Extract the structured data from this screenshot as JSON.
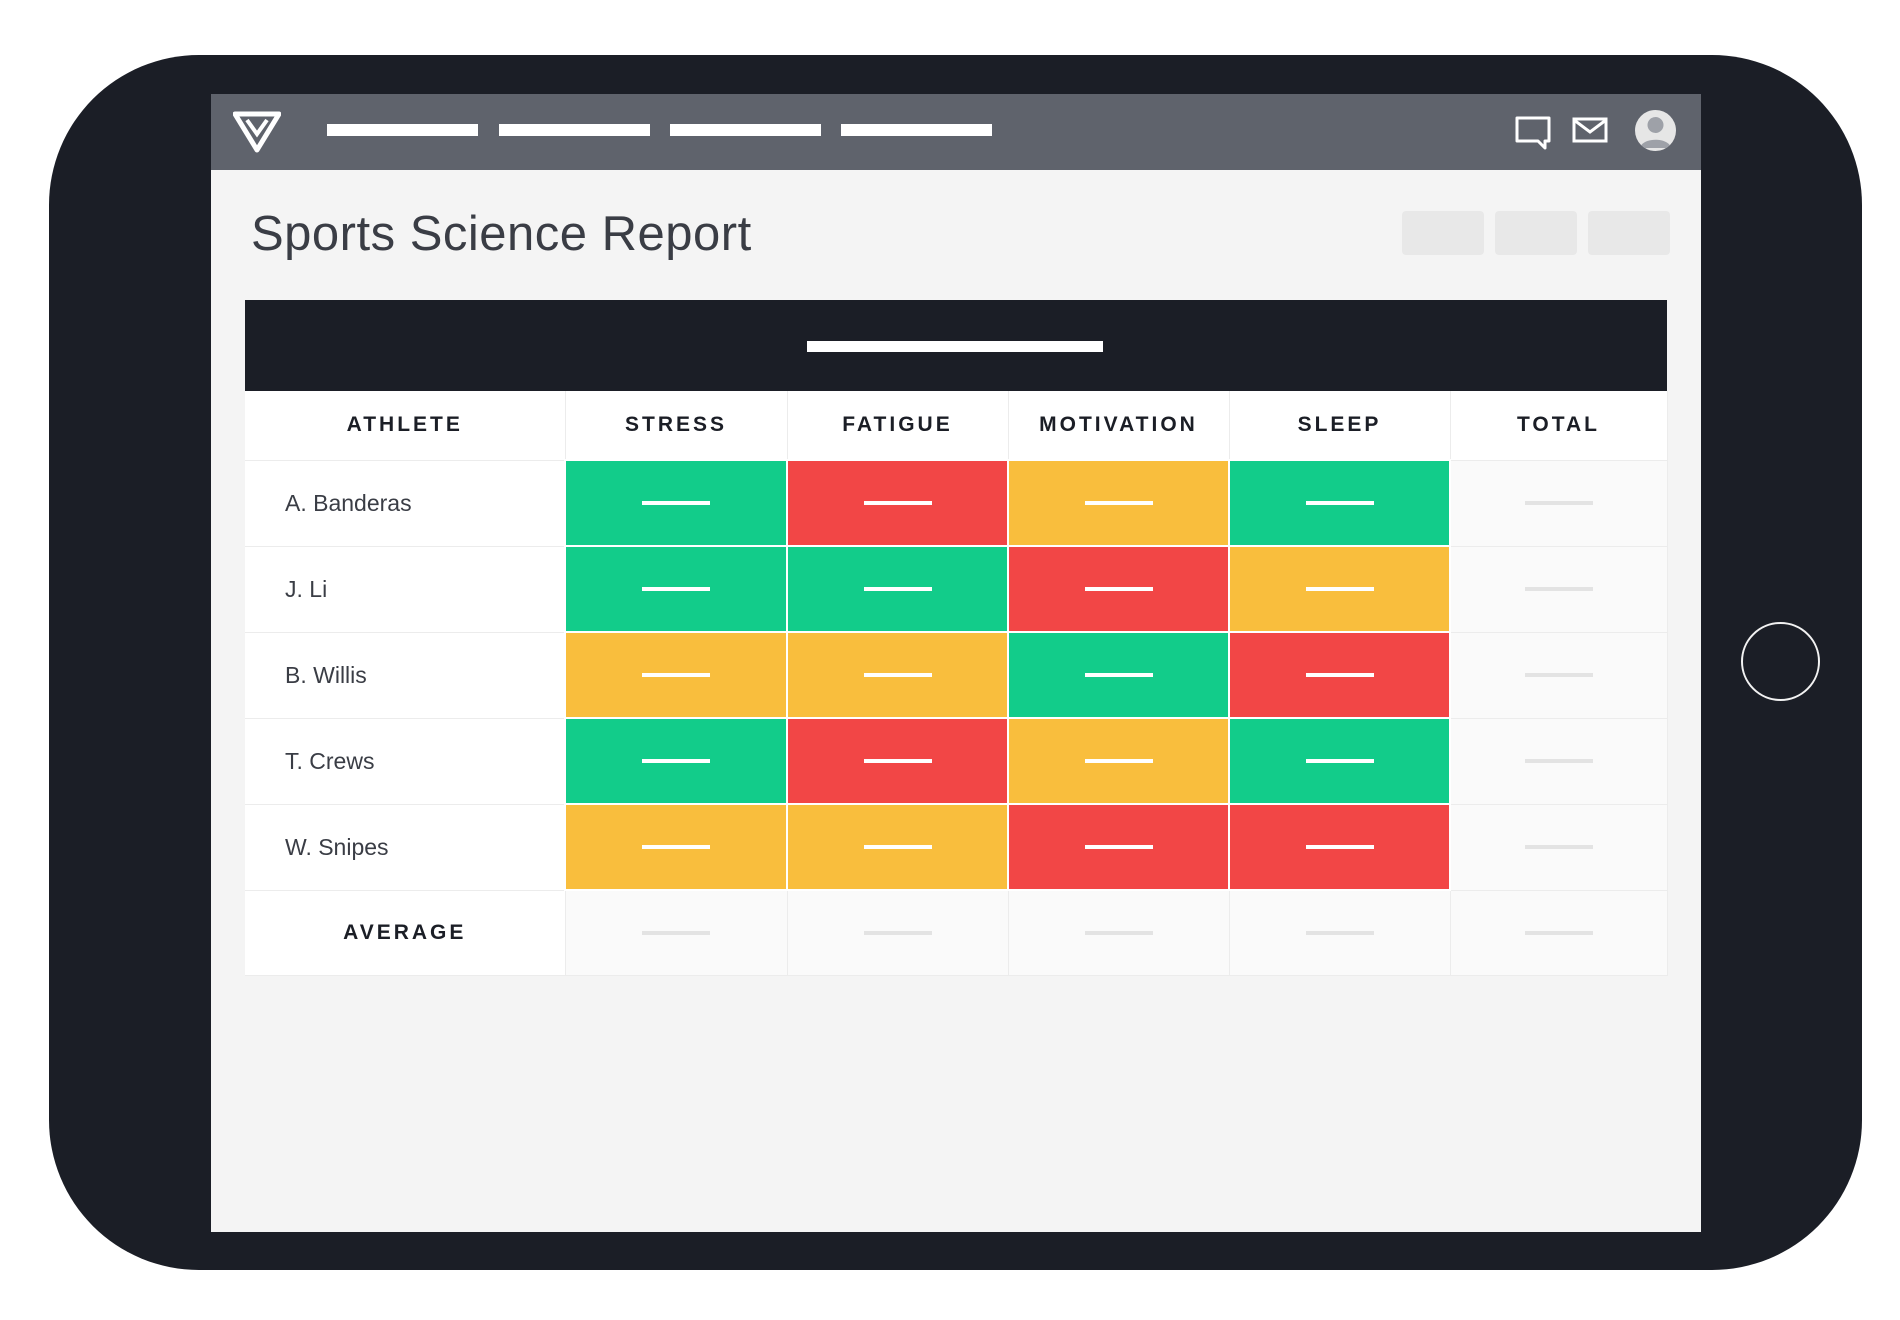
{
  "page": {
    "title": "Sports Science Report"
  },
  "colors": {
    "good": "#12cc8a",
    "warning": "#f9be3d",
    "bad": "#f24646",
    "dark": "#1b1e26",
    "topbar": "#5f636c"
  },
  "topbar": {
    "logo_icon": "brand-logo-icon",
    "icons": [
      "chat-icon",
      "mail-icon",
      "user-avatar-icon"
    ]
  },
  "table": {
    "columns": [
      "ATHLETE",
      "STRESS",
      "FATIGUE",
      "MOTIVATION",
      "SLEEP",
      "TOTAL"
    ],
    "rows": [
      {
        "athlete": "A. Banderas",
        "statuses": [
          "good",
          "bad",
          "warning",
          "good"
        ]
      },
      {
        "athlete": "J. Li",
        "statuses": [
          "good",
          "good",
          "bad",
          "warning"
        ]
      },
      {
        "athlete": "B. Willis",
        "statuses": [
          "warning",
          "warning",
          "good",
          "bad"
        ]
      },
      {
        "athlete": "T. Crews",
        "statuses": [
          "good",
          "bad",
          "warning",
          "good"
        ]
      },
      {
        "athlete": "W. Snipes",
        "statuses": [
          "warning",
          "warning",
          "bad",
          "bad"
        ]
      }
    ],
    "footer_label": "AVERAGE"
  }
}
